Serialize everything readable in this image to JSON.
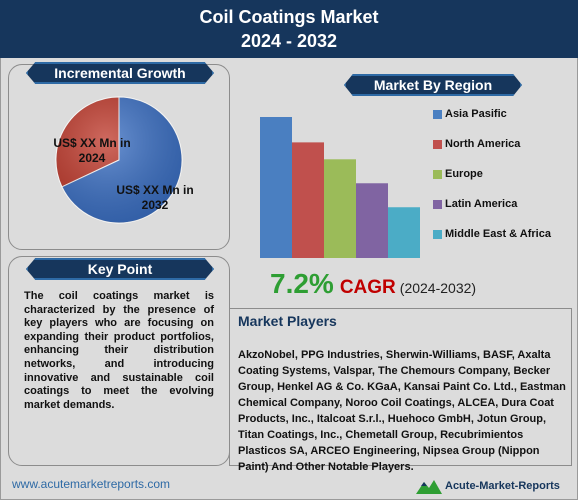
{
  "header": {
    "title_line1": "Coil Coatings Market",
    "title_line2": "2024 - 2032"
  },
  "incremental_growth": {
    "title": "Incremental Growth",
    "label_2024": "US$ XX Mn in 2024",
    "label_2032": "US$ XX Mn in 2032"
  },
  "key_point": {
    "title": "Key Point",
    "text": "The coil coatings market is characterized by the presence of key players who are focusing on expanding their product portfolios, enhancing their distribution networks, and introducing innovative and sustainable coil coatings to meet the evolving market demands."
  },
  "region": {
    "title": "Market By Region"
  },
  "cagr": {
    "percent": "7.2%",
    "word": "CAGR",
    "years": "(2024-2032)"
  },
  "players": {
    "title": "Market Players",
    "text": "AkzoNobel, PPG Industries, Sherwin-Williams, BASF, Axalta Coating Systems, Valspar, The Chemours Company, Becker Group, Henkel AG & Co. KGaA, Kansai Paint Co. Ltd., Eastman Chemical Company, Noroo Coil Coatings, ALCEA, Dura Coat Products, Inc., Italcoat S.r.l., Huehoco GmbH, Jotun Group, Titan Coatings, Inc., Chemetall Group, Recubrimientos Plasticos SA, ARCEO Engineering, Nipsea Group (Nippon Paint) And Other Notable Players."
  },
  "footer": {
    "url": "www.acutemarketreports.com",
    "logo_text": "Acute-Market-Reports"
  },
  "chart_data": [
    {
      "type": "pie",
      "title": "Incremental Growth",
      "labels": [
        "US$ XX Mn in 2024",
        "US$ XX Mn in 2032"
      ],
      "values": [
        32,
        68
      ],
      "colors": [
        "#c0392b",
        "#3a6fc4"
      ]
    },
    {
      "type": "bar",
      "title": "Market By Region",
      "categories": [
        "Asia Pasific",
        "North America",
        "Europe",
        "Latin America",
        "Middle East & Africa"
      ],
      "values": [
        100,
        82,
        70,
        53,
        36
      ],
      "colors": [
        "#4a7fc1",
        "#c0504d",
        "#9bbb59",
        "#8064a2",
        "#4bacc6"
      ],
      "ylim": [
        0,
        100
      ]
    }
  ]
}
